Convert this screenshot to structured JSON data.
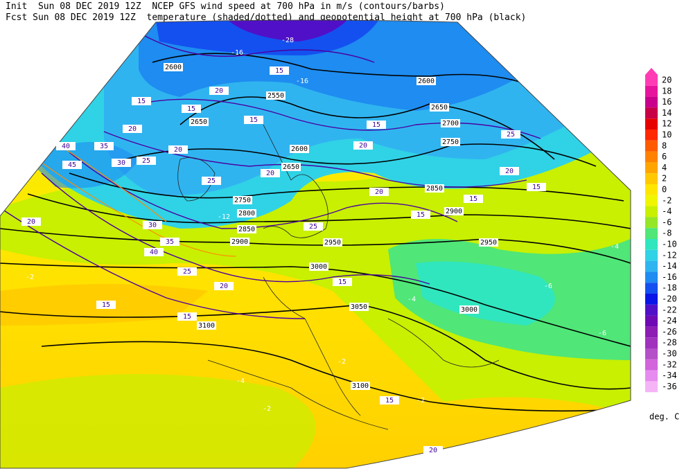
{
  "header": {
    "line1": "Init  Sun 08 DEC 2019 12Z  NCEP GFS wind speed at 700 hPa in m/s (contours/barbs)",
    "line2": "Fcst Sun 08 DEC 2019 12Z  temperature (shaded/dotted) and geopotential height at 700 hPa (black)"
  },
  "colorbar": {
    "labels": [
      20,
      18,
      16,
      14,
      12,
      10,
      8,
      6,
      4,
      2,
      0,
      -2,
      -4,
      -6,
      -8,
      -10,
      -12,
      -14,
      -16,
      -18,
      -20,
      -22,
      -24,
      -26,
      -28,
      -30,
      -32,
      -34,
      -36
    ],
    "colors": [
      "#ff3cb4",
      "#e6149c",
      "#c8008c",
      "#c80046",
      "#e60000",
      "#ff2800",
      "#ff5a00",
      "#ff8200",
      "#ffa500",
      "#ffc800",
      "#ffe600",
      "#f0f500",
      "#c8f000",
      "#96e628",
      "#50e678",
      "#30e6be",
      "#30d2e6",
      "#30b4f0",
      "#1e8cf0",
      "#1450f0",
      "#0a14e6",
      "#5010c8",
      "#6e0ab4",
      "#8c1eb4",
      "#a032be",
      "#b450c8",
      "#d264dc",
      "#e68cf0",
      "#f5b4f5"
    ],
    "unit": "deg. C"
  },
  "map": {
    "height_labels": [
      2600,
      2550,
      2650,
      2600,
      2650,
      2750,
      2800,
      2850,
      2900,
      2950,
      3000,
      2600,
      2650,
      2700,
      2750,
      2850,
      2900,
      2950,
      3000,
      3050,
      3100,
      3100
    ],
    "wind_labels": [
      15,
      20,
      15,
      15,
      20,
      20,
      25,
      20,
      25,
      30,
      35,
      40,
      25,
      20,
      15,
      15,
      15,
      25,
      15,
      20,
      20,
      25,
      15,
      15,
      15,
      20,
      15,
      40,
      35,
      45,
      30,
      20,
      15,
      20
    ],
    "temp_labels": [
      -28,
      -16,
      -16,
      -4,
      -6,
      -6,
      -4,
      -2,
      -2,
      -2,
      -4,
      -2,
      -12
    ]
  }
}
